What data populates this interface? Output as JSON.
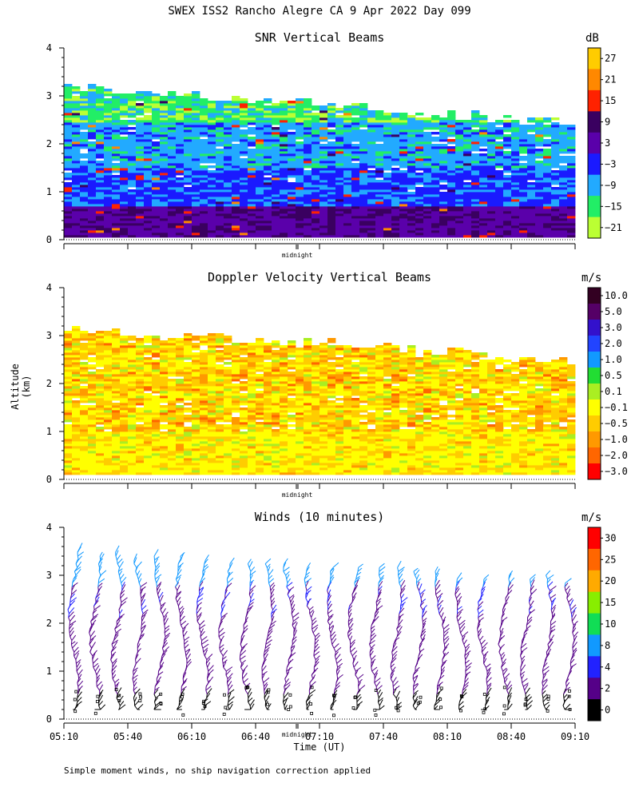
{
  "title": "SWEX ISS2 Rancho Alegre CA   9 Apr 2022 Day 099",
  "x_axis_label": "Time (UT)",
  "y_axis_label": "Altitude (km)",
  "midnight_label": "midnight",
  "footer": "Simple moment winds, no ship navigation correction applied",
  "chart_data": [
    {
      "type": "heatmap",
      "title": "SNR Vertical Beams",
      "unit": "dB",
      "ylim": [
        0,
        4
      ],
      "yticks": [
        "0",
        "1",
        "2",
        "3",
        "4"
      ],
      "colorbar": {
        "labels": [
          "27",
          "21",
          "15",
          "9",
          "3",
          "−3",
          "−9",
          "−15",
          "−21"
        ],
        "colors": [
          "#ffcc00",
          "#ff8800",
          "#ff2200",
          "#3a0060",
          "#5a00aa",
          "#1a1aff",
          "#22aaff",
          "#22ee66",
          "#bbff33"
        ]
      }
    },
    {
      "type": "heatmap",
      "title": "Doppler Velocity Vertical Beams",
      "unit": "m/s",
      "ylim": [
        0,
        4
      ],
      "yticks": [
        "0",
        "1",
        "2",
        "3",
        "4"
      ],
      "colorbar": {
        "labels": [
          "10.0",
          "5.0",
          "3.0",
          "2.0",
          "1.0",
          "0.5",
          "0.1",
          "−0.1",
          "−0.5",
          "−1.0",
          "−2.0",
          "−3.0"
        ],
        "colors": [
          "#330022",
          "#550066",
          "#3311cc",
          "#2244ff",
          "#1199ff",
          "#22dd33",
          "#aaee22",
          "#ffff00",
          "#ffcc00",
          "#ff9900",
          "#ff6600",
          "#ff0000"
        ]
      }
    },
    {
      "type": "barbs",
      "title": "Winds (10 minutes)",
      "unit": "m/s",
      "ylim": [
        0,
        4
      ],
      "yticks": [
        "0",
        "1",
        "2",
        "3",
        "4"
      ],
      "x_ticks": [
        "05:10",
        "05:40",
        "06:10",
        "06:40",
        "07:10",
        "07:40",
        "08:10",
        "08:40",
        "09:10"
      ],
      "colorbar": {
        "labels": [
          "30",
          "25",
          "20",
          "15",
          "10",
          "8",
          "4",
          "2",
          "0"
        ],
        "colors": [
          "#ff0000",
          "#ff6600",
          "#ffaa00",
          "#88ee00",
          "#11dd55",
          "#1199ff",
          "#2222ff",
          "#550088",
          "#000000"
        ]
      }
    }
  ]
}
